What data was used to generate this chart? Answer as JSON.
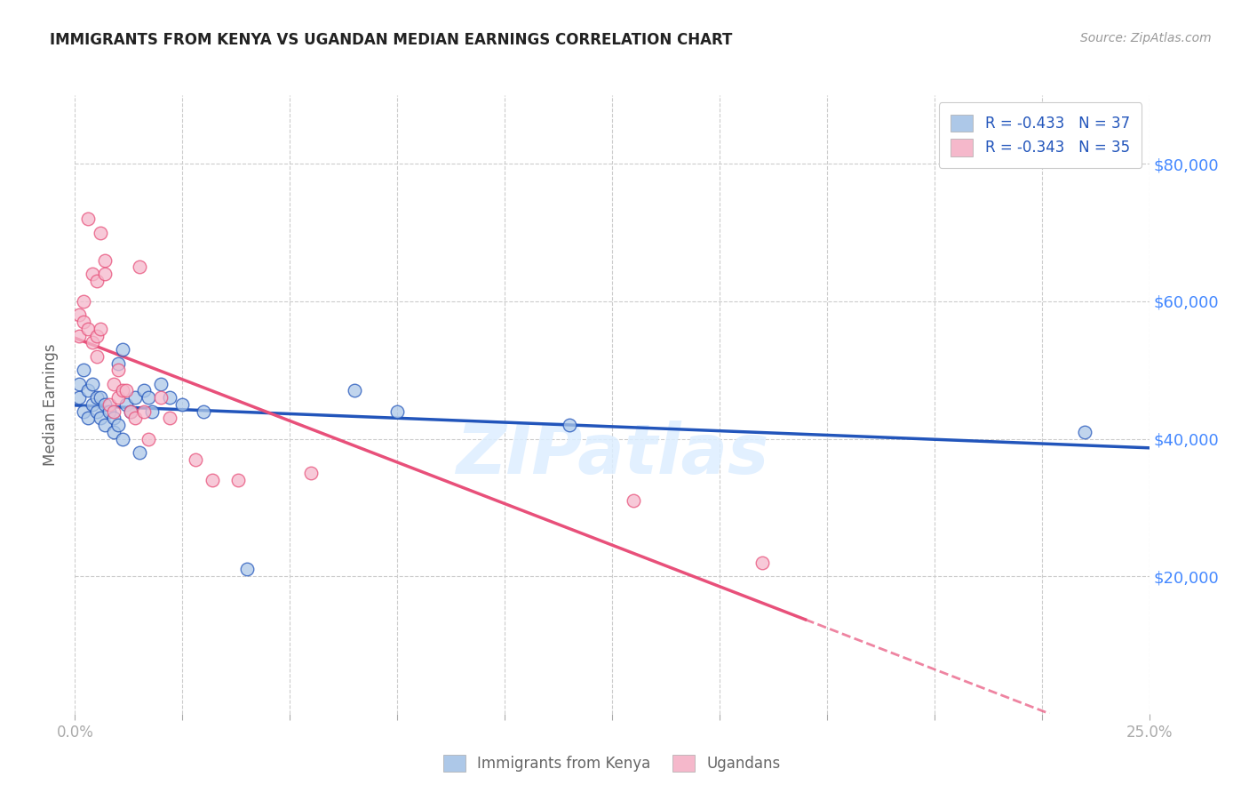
{
  "title": "IMMIGRANTS FROM KENYA VS UGANDAN MEDIAN EARNINGS CORRELATION CHART",
  "source": "Source: ZipAtlas.com",
  "ylabel": "Median Earnings",
  "legend_label1": "Immigrants from Kenya",
  "legend_label2": "Ugandans",
  "legend_r1": "R = -0.433",
  "legend_n1": "N = 37",
  "legend_r2": "R = -0.343",
  "legend_n2": "N = 35",
  "color_kenya": "#adc8e8",
  "color_uganda": "#f5b8cb",
  "color_kenya_line": "#2255bb",
  "color_uganda_line": "#e8507a",
  "color_y_axis_labels": "#4488ff",
  "watermark": "ZIPatlas",
  "xlim": [
    0.0,
    0.25
  ],
  "ylim": [
    0,
    90000
  ],
  "yticks": [
    20000,
    40000,
    60000,
    80000
  ],
  "ytick_labels": [
    "$20,000",
    "$40,000",
    "$60,000",
    "$80,000"
  ],
  "kenya_x": [
    0.001,
    0.001,
    0.002,
    0.002,
    0.003,
    0.003,
    0.004,
    0.004,
    0.005,
    0.005,
    0.006,
    0.006,
    0.007,
    0.007,
    0.008,
    0.009,
    0.009,
    0.01,
    0.01,
    0.011,
    0.011,
    0.012,
    0.013,
    0.014,
    0.015,
    0.016,
    0.017,
    0.018,
    0.02,
    0.022,
    0.025,
    0.03,
    0.04,
    0.065,
    0.075,
    0.115,
    0.235
  ],
  "kenya_y": [
    46000,
    48000,
    44000,
    50000,
    43000,
    47000,
    45000,
    48000,
    46000,
    44000,
    46000,
    43000,
    45000,
    42000,
    44000,
    41000,
    43000,
    42000,
    51000,
    40000,
    53000,
    45000,
    44000,
    46000,
    38000,
    47000,
    46000,
    44000,
    48000,
    46000,
    45000,
    44000,
    21000,
    47000,
    44000,
    42000,
    41000
  ],
  "uganda_x": [
    0.001,
    0.001,
    0.002,
    0.002,
    0.003,
    0.003,
    0.004,
    0.004,
    0.005,
    0.005,
    0.005,
    0.006,
    0.006,
    0.007,
    0.007,
    0.008,
    0.009,
    0.009,
    0.01,
    0.01,
    0.011,
    0.012,
    0.013,
    0.014,
    0.015,
    0.016,
    0.017,
    0.02,
    0.022,
    0.028,
    0.032,
    0.038,
    0.055,
    0.13,
    0.16
  ],
  "uganda_y": [
    55000,
    58000,
    57000,
    60000,
    56000,
    72000,
    54000,
    64000,
    52000,
    55000,
    63000,
    70000,
    56000,
    66000,
    64000,
    45000,
    44000,
    48000,
    46000,
    50000,
    47000,
    47000,
    44000,
    43000,
    65000,
    44000,
    40000,
    46000,
    43000,
    37000,
    34000,
    34000,
    35000,
    31000,
    22000
  ]
}
